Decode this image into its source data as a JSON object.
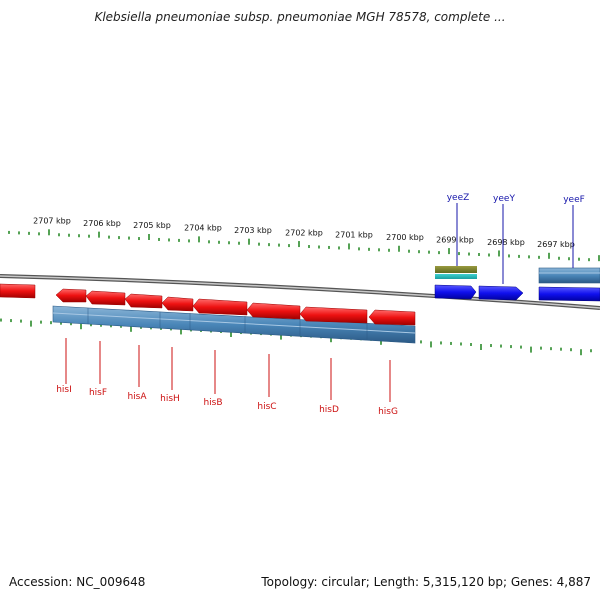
{
  "title": "Klebsiella pneumoniae subsp. pneumoniae MGH 78578, complete ...",
  "footer": {
    "accession": "Accession: NC_009648",
    "topology": "Topology: circular; Length: 5,315,120 bp; Genes: 4,887"
  },
  "scale_labels": [
    "2707 kbp",
    "2706 kbp",
    "2705 kbp",
    "2704 kbp",
    "2703 kbp",
    "2702 kbp",
    "2701 kbp",
    "2700 kbp",
    "2699 kbp",
    "2698 kbp",
    "2697 kbp"
  ],
  "gene_labels_bottom": [
    "hisI",
    "hisF",
    "hisA",
    "hisH",
    "hisB",
    "hisC",
    "hisD",
    "hisG"
  ],
  "gene_labels_top": [
    "yeeZ",
    "yeeY",
    "yeeF"
  ],
  "colors": {
    "forward_gene": "#1010ee",
    "reverse_gene": "#ee1111",
    "cds_band": "#4a86b8",
    "tick": "#2a8a2a",
    "backbone": "#8a8a8a",
    "label_red": "#cc1111",
    "label_blue": "#1515aa"
  }
}
